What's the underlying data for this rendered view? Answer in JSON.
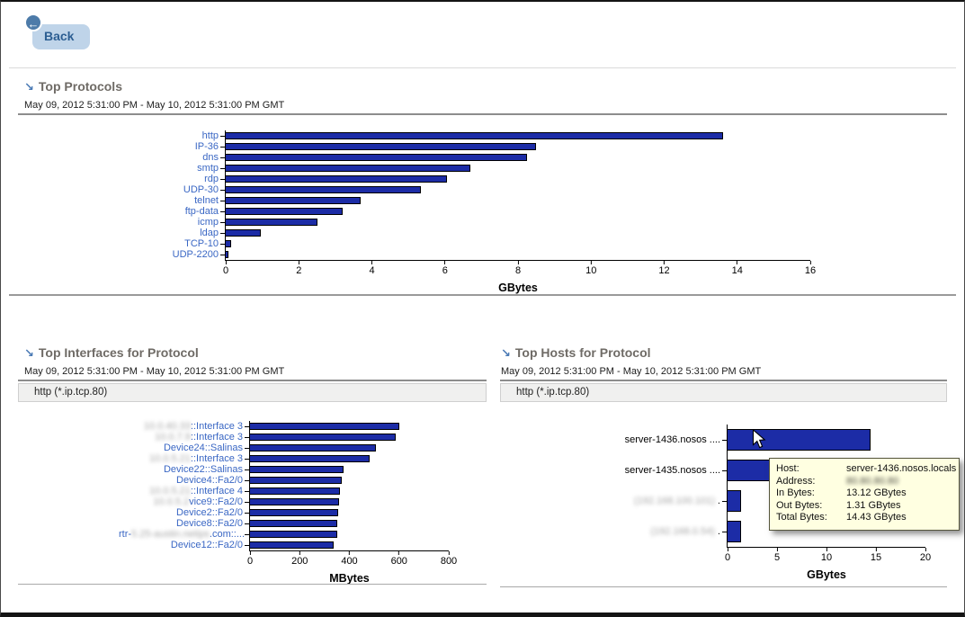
{
  "icons": {
    "back_arrow": "←",
    "drilldown": "↘"
  },
  "colors": {
    "bar_fill": "#1c2ca6",
    "category_link": "#3a67c4",
    "title_text": "#6f6b66",
    "back_bg": "#bfd4e9",
    "back_text": "#2c5e92",
    "back_badge": "#4d7ba9",
    "tooltip_bg": "#ffffe1"
  },
  "back_button": {
    "label": "Back"
  },
  "sections": [
    {
      "title": "Top Protocols",
      "date_range": "May 09, 2012 5:31:00 PM - May 10, 2012 5:31:00 PM GMT",
      "filter": null
    },
    {
      "title": "Top Interfaces for Protocol",
      "date_range": "May 09, 2012 5:31:00 PM - May 10, 2012 5:31:00 PM GMT",
      "filter": "http (*.ip.tcp.80)"
    },
    {
      "title": "Top Hosts for Protocol",
      "date_range": "May 09, 2012 5:31:00 PM - May 10, 2012 5:31:00 PM GMT",
      "filter": "http (*.ip.tcp.80)"
    }
  ],
  "tooltip": {
    "rows": [
      {
        "label": "Host:",
        "value": "server-1436.nosos.locals",
        "redacted": false
      },
      {
        "label": "Address:",
        "value": "80.80.80.80",
        "redacted": true
      },
      {
        "label": "In Bytes:",
        "value": "13.12 GBytes",
        "redacted": false
      },
      {
        "label": "Out Bytes:",
        "value": "1.31 GBytes",
        "redacted": false
      },
      {
        "label": "Total Bytes:",
        "value": "14.43 GBytes",
        "redacted": false
      }
    ]
  },
  "chart_data": [
    {
      "type": "bar",
      "orientation": "horizontal",
      "title": "Top Protocols",
      "categories": [
        "http",
        "IP-36",
        "dns",
        "smtp",
        "rdp",
        "UDP-30",
        "telnet",
        "ftp-data",
        "icmp",
        "ldap",
        "TCP-10",
        "UDP-2200"
      ],
      "values": [
        13.6,
        8.5,
        8.25,
        6.7,
        6.05,
        5.35,
        3.7,
        3.2,
        2.5,
        0.95,
        0.15,
        0.07
      ],
      "xlabel": "GBytes",
      "xlim": [
        0,
        16
      ],
      "xticks": [
        0,
        2,
        4,
        6,
        8,
        10,
        12,
        14,
        16
      ],
      "grid": false,
      "labels_clickable": true
    },
    {
      "type": "bar",
      "orientation": "horizontal",
      "title": "Top Interfaces for Protocol",
      "categories": [
        "10.0.40.33::Interface 3",
        "10.0.7.9::Interface 3",
        "Device24::Salinas",
        "10.0.5.21::Interface 3",
        "Device22::Salinas",
        "Device4::Fa2/0",
        "10.0.5.21::Interface 4",
        "10.0.5.2vice9::Fa2/0",
        "Device2::Fa2/0",
        "Device8::Fa2/0",
        "rtr-5.25-austin.netips.com::...",
        "Device12::Fa2/0"
      ],
      "category_parts": [
        [
          {
            "t": "10.0.40.33",
            "blur": true
          },
          {
            "t": "::Interface 3"
          }
        ],
        [
          {
            "t": "10.0.7.9",
            "blur": true
          },
          {
            "t": "::Interface 3"
          }
        ],
        null,
        [
          {
            "t": "10.0.5.21",
            "blur": true
          },
          {
            "t": "::Interface 3"
          }
        ],
        null,
        null,
        [
          {
            "t": "10.0.5.21",
            "blur": true
          },
          {
            "t": "::Interface 4"
          }
        ],
        [
          {
            "t": "10.0.5.2",
            "blur": true
          },
          {
            "t": "vice9::Fa2/0"
          }
        ],
        null,
        null,
        [
          {
            "t": "rtr-"
          },
          {
            "t": "5.25-austin.netips",
            "blur": true
          },
          {
            "t": ".com::..."
          }
        ],
        null
      ],
      "values": [
        600,
        585,
        505,
        480,
        375,
        370,
        363,
        358,
        354,
        351,
        350,
        336
      ],
      "xlabel": "MBytes",
      "xlim": [
        0,
        800
      ],
      "xticks": [
        0,
        200,
        400,
        600,
        800
      ],
      "grid": false,
      "labels_clickable": true
    },
    {
      "type": "bar",
      "orientation": "horizontal",
      "title": "Top Hosts for Protocol",
      "categories": [
        "server-1436.nosos ....",
        "server-1435.nosos ....",
        "(192.168.100.101) .",
        "(192.168.0.54) ."
      ],
      "category_parts": [
        null,
        null,
        [
          {
            "t": "(192.168.100.101)",
            "blur": true
          },
          {
            "t": " ."
          }
        ],
        [
          {
            "t": "(192.168.0.54)",
            "blur": true
          },
          {
            "t": " ."
          }
        ]
      ],
      "values": [
        14.43,
        13.1,
        1.4,
        1.4
      ],
      "xlabel": "GBytes",
      "xlim": [
        0,
        20
      ],
      "xticks": [
        0,
        5,
        10,
        15,
        20
      ],
      "grid": false,
      "labels_clickable": false,
      "note": "second bar partially hidden behind tooltip"
    }
  ]
}
